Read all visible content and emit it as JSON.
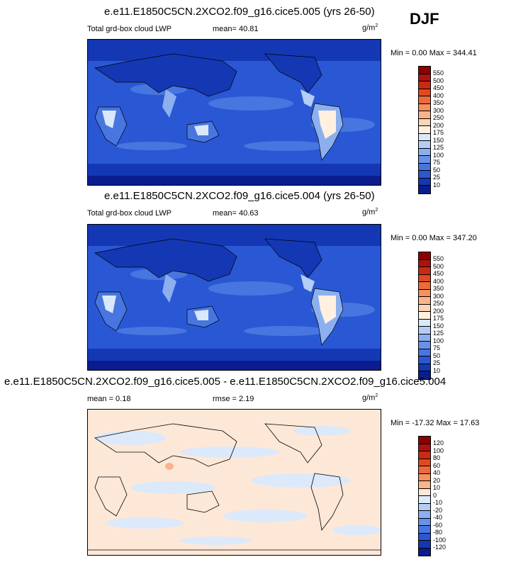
{
  "season": "DJF",
  "panels": [
    {
      "title": "e.e11.E1850C5CN.2XCO2.f09_g16.cice5.005 (yrs 26-50)",
      "left_label": "Total grd-box cloud LWP",
      "mean_label": "mean=  40.81",
      "unit": "g/m",
      "unit_sup": "2",
      "minmax": "Min =   0.00 Max = 344.41",
      "colorbar": {
        "labels": [
          "550",
          "500",
          "450",
          "400",
          "350",
          "300",
          "250",
          "200",
          "175",
          "150",
          "125",
          "100",
          "75",
          "50",
          "25",
          "10"
        ],
        "colors": [
          "#8b0000",
          "#b01010",
          "#cc2a10",
          "#e04a20",
          "#ee6a3a",
          "#f6905e",
          "#fab489",
          "#fcd5b6",
          "#fff0e0",
          "#d9e8fb",
          "#b3cdf5",
          "#8cb0ef",
          "#6892e8",
          "#4876e0",
          "#2a58d4",
          "#1438b4",
          "#0a1c8e"
        ]
      }
    },
    {
      "title": "e.e11.E1850C5CN.2XCO2.f09_g16.cice5.004 (yrs 26-50)",
      "left_label": "Total grd-box cloud LWP",
      "mean_label": "mean=  40.63",
      "unit": "g/m",
      "unit_sup": "2",
      "minmax": "Min =   0.00 Max = 347.20",
      "colorbar": {
        "labels": [
          "550",
          "500",
          "450",
          "400",
          "350",
          "300",
          "250",
          "200",
          "175",
          "150",
          "125",
          "100",
          "75",
          "50",
          "25",
          "10"
        ],
        "colors": [
          "#8b0000",
          "#b01010",
          "#cc2a10",
          "#e04a20",
          "#ee6a3a",
          "#f6905e",
          "#fab489",
          "#fcd5b6",
          "#fff0e0",
          "#d9e8fb",
          "#b3cdf5",
          "#8cb0ef",
          "#6892e8",
          "#4876e0",
          "#2a58d4",
          "#1438b4",
          "#0a1c8e"
        ]
      }
    },
    {
      "title": "e.e11.E1850C5CN.2XCO2.f09_g16.cice5.005 - e.e11.E1850C5CN.2XCO2.f09_g16.cice5.004",
      "left_label": "mean =   0.18",
      "mean_label": "rmse =   2.19",
      "unit": "g/m",
      "unit_sup": "2",
      "minmax": "Min = -17.32 Max =  17.63",
      "colorbar": {
        "labels": [
          "120",
          "100",
          "80",
          "60",
          "40",
          "20",
          "10",
          "0",
          "-10",
          "-20",
          "-40",
          "-60",
          "-80",
          "-100",
          "-120"
        ],
        "colors": [
          "#8b0000",
          "#b01010",
          "#cc2a10",
          "#e04a20",
          "#ee6a3a",
          "#f6905e",
          "#fab489",
          "#fde8d8",
          "#dce9fa",
          "#b3cdf5",
          "#8cb0ef",
          "#6892e8",
          "#4876e0",
          "#2a58d4",
          "#1438b4",
          "#0a1c8e"
        ]
      }
    }
  ]
}
